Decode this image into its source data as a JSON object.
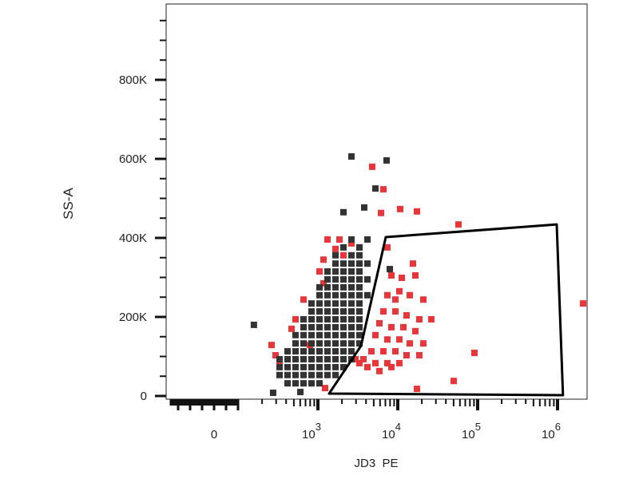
{
  "chart_data": {
    "type": "scatter",
    "title": "",
    "xlabel": "JD3  PE",
    "ylabel": "SS-A",
    "x_scale": "biexponential",
    "xlim": [
      -200,
      2000000
    ],
    "ylim": [
      0,
      990000
    ],
    "x_ticks": [
      {
        "value": 0,
        "base": "0",
        "exp": ""
      },
      {
        "value": 1000,
        "base": "10",
        "exp": "3"
      },
      {
        "value": 10000,
        "base": "10",
        "exp": "4"
      },
      {
        "value": 100000,
        "base": "10",
        "exp": "5"
      },
      {
        "value": 1000000,
        "base": "10",
        "exp": "6"
      }
    ],
    "y_ticks": [
      {
        "value": 0,
        "label": "0"
      },
      {
        "value": 200000,
        "label": "200K"
      },
      {
        "value": 400000,
        "label": "400K"
      },
      {
        "value": 600000,
        "label": "600K"
      },
      {
        "value": 800000,
        "label": "800K"
      }
    ],
    "grid": false,
    "gate": {
      "shape": "polygon",
      "color": "#000000",
      "vertices": [
        [
          1380,
          6000
        ],
        [
          3467,
          127000
        ],
        [
          7080,
          402000
        ],
        [
          977000,
          434000
        ],
        [
          1170000,
          2000
        ]
      ]
    },
    "series": [
      {
        "color": "#e8363a",
        "marker": "square",
        "points": [
          [
            4786,
            580000
          ],
          [
            6607,
            523000
          ],
          [
            6166,
            463000
          ],
          [
            10715,
            473000
          ],
          [
            17378,
            467000
          ],
          [
            57544,
            434000
          ],
          [
            2090000,
            234000
          ],
          [
            91200,
            109000
          ],
          [
            50100,
            38000
          ],
          [
            17378,
            18000
          ],
          [
            1230,
            20000
          ],
          [
            7413,
            376000
          ],
          [
            15488,
            335000
          ],
          [
            8318,
            305000
          ],
          [
            11220,
            299000
          ],
          [
            16596,
            305000
          ],
          [
            10471,
            265000
          ],
          [
            14125,
            255000
          ],
          [
            20893,
            244000
          ],
          [
            7413,
            255000
          ],
          [
            9333,
            244000
          ],
          [
            6607,
            214000
          ],
          [
            9333,
            214000
          ],
          [
            12882,
            204000
          ],
          [
            18621,
            194000
          ],
          [
            26303,
            194000
          ],
          [
            5888,
            184000
          ],
          [
            8318,
            174000
          ],
          [
            11749,
            174000
          ],
          [
            16596,
            164000
          ],
          [
            5248,
            154000
          ],
          [
            7413,
            143000
          ],
          [
            10471,
            143000
          ],
          [
            14125,
            133000
          ],
          [
            20893,
            133000
          ],
          [
            4677,
            113000
          ],
          [
            6607,
            113000
          ],
          [
            9333,
            113000
          ],
          [
            12882,
            103000
          ],
          [
            18621,
            103000
          ],
          [
            3715,
            93000
          ],
          [
            5248,
            83000
          ],
          [
            7413,
            83000
          ],
          [
            10471,
            83000
          ],
          [
            4169,
            73000
          ],
          [
            5888,
            63000
          ],
          [
            8318,
            73000
          ],
          [
            2951,
            93000
          ],
          [
            3311,
            83000
          ],
          [
            263,
            129000
          ],
          [
            331,
            89000
          ],
          [
            295,
            103000
          ],
          [
            468,
            170000
          ],
          [
            525,
            194000
          ],
          [
            661,
            244000
          ],
          [
            1047,
            315000
          ],
          [
            1175,
            345000
          ],
          [
            1318,
            396000
          ],
          [
            1862,
            396000
          ],
          [
            1660,
            372000
          ],
          [
            2089,
            356000
          ],
          [
            1175,
            285000
          ],
          [
            794,
            129000
          ],
          [
            2630,
            386000
          ],
          [
            3311,
            376000
          ]
        ]
      },
      {
        "color": "#333333",
        "marker": "square",
        "points": [
          [
            417,
            32000
          ],
          [
            525,
            32000
          ],
          [
            661,
            32000
          ],
          [
            832,
            32000
          ],
          [
            1047,
            32000
          ],
          [
            331,
            53000
          ],
          [
            417,
            53000
          ],
          [
            525,
            53000
          ],
          [
            661,
            53000
          ],
          [
            832,
            53000
          ],
          [
            1047,
            53000
          ],
          [
            1318,
            53000
          ],
          [
            1660,
            53000
          ],
          [
            331,
            73000
          ],
          [
            417,
            73000
          ],
          [
            525,
            73000
          ],
          [
            661,
            73000
          ],
          [
            832,
            73000
          ],
          [
            1047,
            73000
          ],
          [
            1318,
            73000
          ],
          [
            1660,
            73000
          ],
          [
            2089,
            73000
          ],
          [
            331,
            93000
          ],
          [
            417,
            93000
          ],
          [
            525,
            93000
          ],
          [
            661,
            93000
          ],
          [
            832,
            93000
          ],
          [
            1047,
            93000
          ],
          [
            1318,
            93000
          ],
          [
            1660,
            93000
          ],
          [
            2089,
            93000
          ],
          [
            2630,
            93000
          ],
          [
            417,
            113000
          ],
          [
            525,
            113000
          ],
          [
            661,
            113000
          ],
          [
            832,
            113000
          ],
          [
            1047,
            113000
          ],
          [
            1318,
            113000
          ],
          [
            1660,
            113000
          ],
          [
            2089,
            113000
          ],
          [
            2630,
            113000
          ],
          [
            525,
            133000
          ],
          [
            661,
            133000
          ],
          [
            832,
            133000
          ],
          [
            1047,
            133000
          ],
          [
            1318,
            133000
          ],
          [
            1660,
            133000
          ],
          [
            2089,
            133000
          ],
          [
            2630,
            133000
          ],
          [
            3311,
            133000
          ],
          [
            525,
            154000
          ],
          [
            661,
            154000
          ],
          [
            832,
            154000
          ],
          [
            1047,
            154000
          ],
          [
            1318,
            154000
          ],
          [
            1660,
            154000
          ],
          [
            2089,
            154000
          ],
          [
            2630,
            154000
          ],
          [
            3311,
            154000
          ],
          [
            661,
            174000
          ],
          [
            832,
            174000
          ],
          [
            1047,
            174000
          ],
          [
            1318,
            174000
          ],
          [
            1660,
            174000
          ],
          [
            2089,
            174000
          ],
          [
            2630,
            174000
          ],
          [
            3311,
            174000
          ],
          [
            661,
            194000
          ],
          [
            832,
            194000
          ],
          [
            1047,
            194000
          ],
          [
            1318,
            194000
          ],
          [
            1660,
            194000
          ],
          [
            2089,
            194000
          ],
          [
            2630,
            194000
          ],
          [
            3311,
            194000
          ],
          [
            832,
            214000
          ],
          [
            1047,
            214000
          ],
          [
            1318,
            214000
          ],
          [
            1660,
            214000
          ],
          [
            2089,
            214000
          ],
          [
            2630,
            214000
          ],
          [
            3311,
            214000
          ],
          [
            832,
            234000
          ],
          [
            1047,
            234000
          ],
          [
            1318,
            234000
          ],
          [
            1660,
            234000
          ],
          [
            2089,
            234000
          ],
          [
            2630,
            234000
          ],
          [
            3311,
            234000
          ],
          [
            1047,
            255000
          ],
          [
            1318,
            255000
          ],
          [
            1660,
            255000
          ],
          [
            2089,
            255000
          ],
          [
            2630,
            255000
          ],
          [
            3311,
            255000
          ],
          [
            4169,
            255000
          ],
          [
            1047,
            275000
          ],
          [
            1318,
            275000
          ],
          [
            1660,
            275000
          ],
          [
            2089,
            275000
          ],
          [
            2630,
            275000
          ],
          [
            3311,
            275000
          ],
          [
            1318,
            295000
          ],
          [
            1660,
            295000
          ],
          [
            2089,
            295000
          ],
          [
            2630,
            295000
          ],
          [
            3311,
            295000
          ],
          [
            4169,
            295000
          ],
          [
            1318,
            315000
          ],
          [
            1660,
            315000
          ],
          [
            2089,
            315000
          ],
          [
            2630,
            315000
          ],
          [
            3311,
            315000
          ],
          [
            1660,
            335000
          ],
          [
            2089,
            335000
          ],
          [
            2630,
            335000
          ],
          [
            3311,
            335000
          ],
          [
            4169,
            335000
          ],
          [
            1660,
            356000
          ],
          [
            2630,
            356000
          ],
          [
            3311,
            356000
          ],
          [
            2089,
            376000
          ],
          [
            3311,
            376000
          ],
          [
            2630,
            396000
          ],
          [
            4169,
            396000
          ],
          [
            158,
            180000
          ],
          [
            275,
            8000
          ],
          [
            603,
            10000
          ],
          [
            2630,
            606000
          ],
          [
            7244,
            596000
          ],
          [
            5248,
            525000
          ],
          [
            3802,
            477000
          ],
          [
            2089,
            465000
          ],
          [
            7943,
            321000
          ]
        ]
      }
    ]
  }
}
